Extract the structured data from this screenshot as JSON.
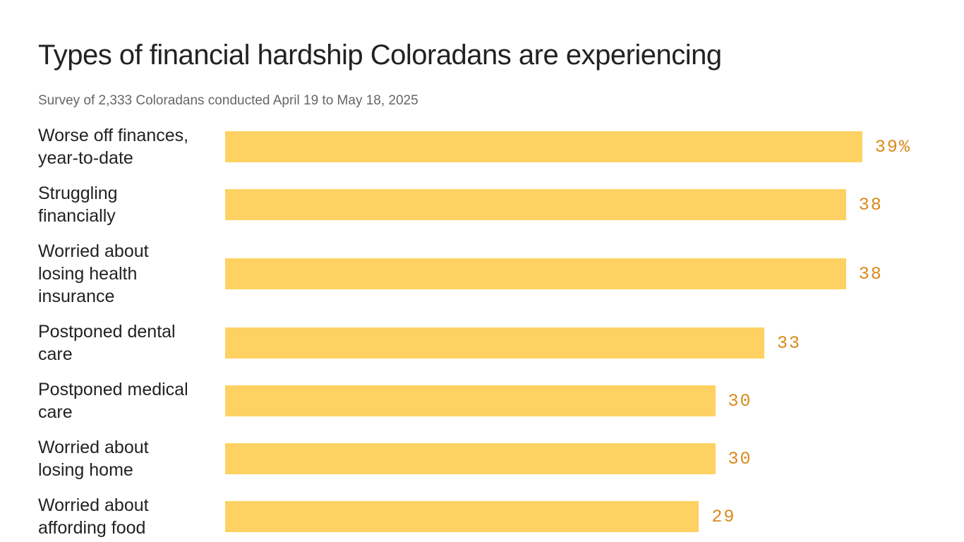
{
  "chart_data": {
    "type": "bar",
    "orientation": "horizontal",
    "title": "Types of financial hardship Coloradans are experiencing",
    "subtitle": "Survey of 2,333 Coloradans conducted April 19 to May 18, 2025",
    "categories": [
      "Worse off finances, year-to-date",
      "Struggling financially",
      "Worried about losing health insurance",
      "Postponed dental care",
      "Postponed medical care",
      "Worried about losing home",
      "Worried about affording food"
    ],
    "values": [
      39,
      38,
      38,
      33,
      30,
      30,
      29
    ],
    "value_labels": [
      "39%",
      "38",
      "38",
      "33",
      "30",
      "30",
      "29"
    ],
    "color": "#fdd262",
    "label_color": "#d98a1a"
  }
}
